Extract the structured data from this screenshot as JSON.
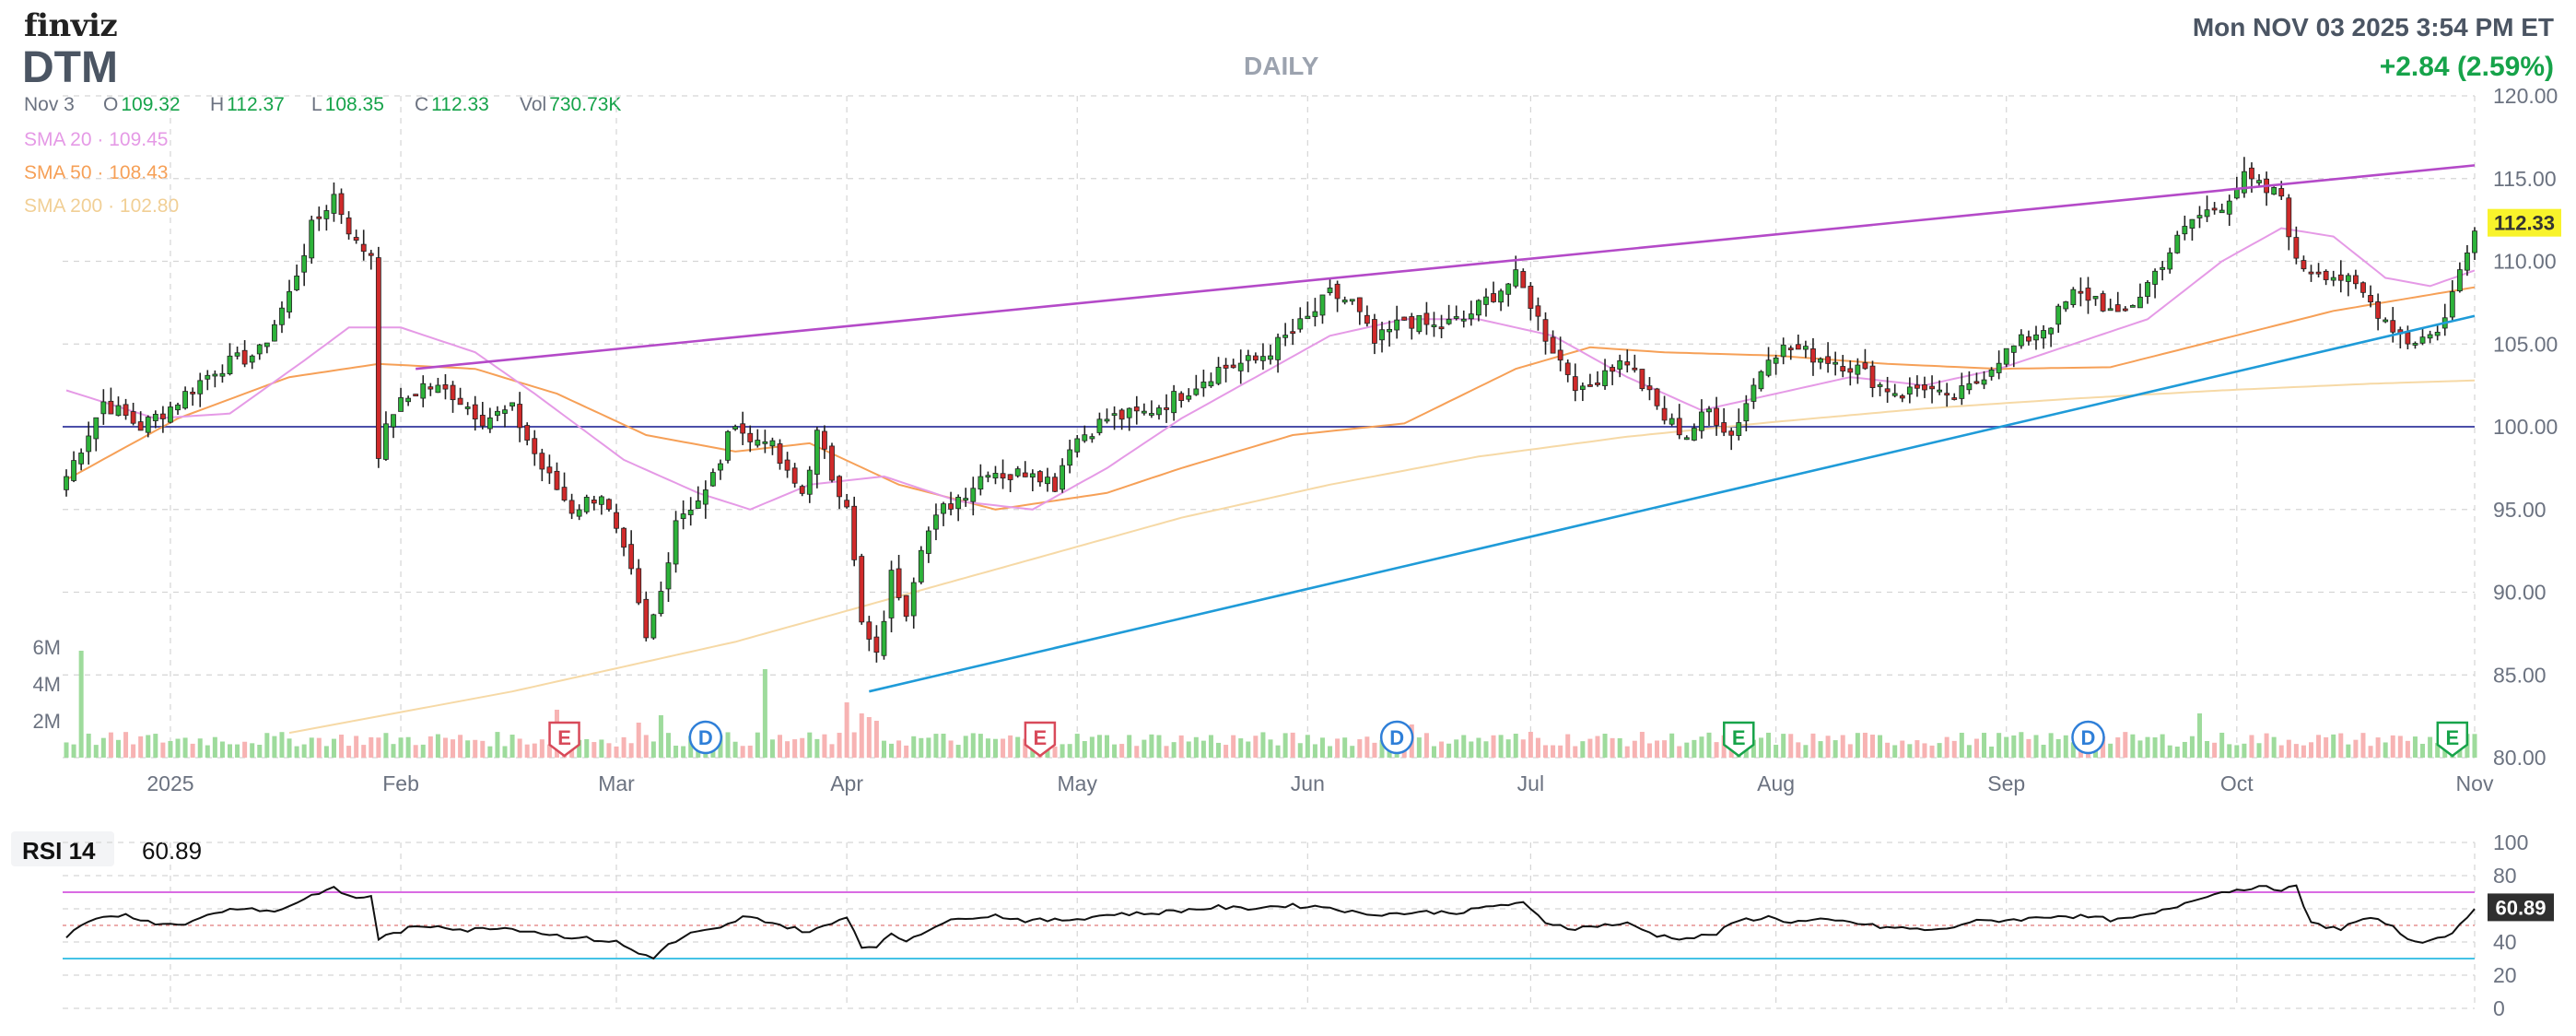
{
  "header": {
    "logo": "finviz",
    "ticker": "DTM",
    "timeframe": "DAILY",
    "datetime": "Mon NOV 03 2025 3:54 PM ET",
    "change": "+2.84 (2.59%)"
  },
  "ohlc": {
    "date": "Nov 3",
    "open_label": "O",
    "open": "109.32",
    "high_label": "H",
    "high": "112.37",
    "low_label": "L",
    "low": "108.35",
    "close_label": "C",
    "close": "112.33",
    "vol_label": "Vol",
    "vol": "730.73K"
  },
  "colors": {
    "up": "#2db33a",
    "down": "#d02a2a",
    "sma20": "#e59ae6",
    "sma50": "#f6a057",
    "sma200": "#f6d9a6",
    "trend_upper": "#b44ac8",
    "trend_lower": "#1f9bd8",
    "hline": "#4b4fa8",
    "price_badge": "#f8f32b",
    "rsi_line": "#111111",
    "rsi_upper": "#d96be3",
    "rsi_lower": "#45c3e6",
    "rsi_mid": "#e07a7a"
  },
  "chart_data": [
    {
      "type": "candlestick",
      "ticker": "DTM",
      "ylim": [
        80,
        120
      ],
      "yticks": [
        "120.00",
        "115.00",
        "110.00",
        "105.00",
        "100.00",
        "95.00",
        "90.00",
        "85.00",
        "80.00"
      ],
      "xticks": [
        "2025",
        "Feb",
        "Mar",
        "Apr",
        "May",
        "Jun",
        "Jul",
        "Aug",
        "Sep",
        "Oct",
        "Nov"
      ],
      "xtick_index": [
        14,
        45,
        74,
        105,
        136,
        167,
        197,
        230,
        261,
        292,
        324
      ],
      "volume_ticks": [
        "6M",
        "4M",
        "2M"
      ],
      "last_price": "112.33",
      "horizontal_line": 100,
      "trendlines": [
        {
          "name": "upper",
          "from": [
            47,
            103.5
          ],
          "to": [
            324,
            115.8
          ]
        },
        {
          "name": "lower",
          "from": [
            108,
            84.0
          ],
          "to": [
            324,
            106.7
          ]
        }
      ],
      "events": [
        {
          "label": "E",
          "index": 67,
          "color": "#d84a5a"
        },
        {
          "label": "D",
          "index": 86,
          "color": "#2f7fd8"
        },
        {
          "label": "E",
          "index": 131,
          "color": "#d84a5a"
        },
        {
          "label": "D",
          "index": 179,
          "color": "#2f7fd8"
        },
        {
          "label": "E",
          "index": 225,
          "color": "#17a34a"
        },
        {
          "label": "D",
          "index": 272,
          "color": "#2f7fd8"
        },
        {
          "label": "E",
          "index": 321,
          "color": "#17a34a"
        }
      ],
      "sma": [
        {
          "name": "SMA 20",
          "value": "109.45"
        },
        {
          "name": "SMA 50",
          "value": "108.43"
        },
        {
          "name": "SMA 200",
          "value": "102.80"
        }
      ],
      "sma_knots": {
        "sma20": [
          [
            0,
            102.2
          ],
          [
            12,
            100.5
          ],
          [
            22,
            100.8
          ],
          [
            32,
            104.0
          ],
          [
            38,
            106.0
          ],
          [
            45,
            106.0
          ],
          [
            55,
            104.5
          ],
          [
            63,
            102.0
          ],
          [
            75,
            98.0
          ],
          [
            85,
            96.0
          ],
          [
            92,
            95.0
          ],
          [
            100,
            96.5
          ],
          [
            110,
            97.0
          ],
          [
            120,
            95.5
          ],
          [
            130,
            95.0
          ],
          [
            140,
            97.5
          ],
          [
            150,
            100.5
          ],
          [
            160,
            103.0
          ],
          [
            170,
            105.5
          ],
          [
            180,
            106.5
          ],
          [
            190,
            106.5
          ],
          [
            200,
            105.5
          ],
          [
            210,
            103.0
          ],
          [
            220,
            101.0
          ],
          [
            230,
            102.0
          ],
          [
            240,
            103.0
          ],
          [
            250,
            102.5
          ],
          [
            260,
            103.5
          ],
          [
            270,
            105.0
          ],
          [
            280,
            106.5
          ],
          [
            290,
            110.0
          ],
          [
            298,
            112.0
          ],
          [
            305,
            111.5
          ],
          [
            312,
            109.0
          ],
          [
            318,
            108.5
          ],
          [
            324,
            109.45
          ]
        ],
        "sma50": [
          [
            0,
            96.8
          ],
          [
            15,
            100.5
          ],
          [
            30,
            103.0
          ],
          [
            42,
            103.8
          ],
          [
            55,
            103.5
          ],
          [
            66,
            102.0
          ],
          [
            78,
            99.5
          ],
          [
            90,
            98.5
          ],
          [
            100,
            99.0
          ],
          [
            112,
            96.5
          ],
          [
            125,
            95.0
          ],
          [
            140,
            96.0
          ],
          [
            150,
            97.5
          ],
          [
            165,
            99.5
          ],
          [
            180,
            100.2
          ],
          [
            195,
            103.5
          ],
          [
            205,
            104.8
          ],
          [
            215,
            104.5
          ],
          [
            230,
            104.3
          ],
          [
            245,
            103.8
          ],
          [
            260,
            103.5
          ],
          [
            275,
            103.6
          ],
          [
            290,
            105.3
          ],
          [
            305,
            107.0
          ],
          [
            324,
            108.43
          ]
        ],
        "sma200": [
          [
            30,
            81.5
          ],
          [
            60,
            84.0
          ],
          [
            90,
            87.0
          ],
          [
            110,
            89.5
          ],
          [
            130,
            92.0
          ],
          [
            150,
            94.5
          ],
          [
            170,
            96.5
          ],
          [
            190,
            98.2
          ],
          [
            210,
            99.4
          ],
          [
            230,
            100.3
          ],
          [
            250,
            101.1
          ],
          [
            270,
            101.7
          ],
          [
            290,
            102.2
          ],
          [
            310,
            102.6
          ],
          [
            324,
            102.8
          ]
        ]
      },
      "price_knots": [
        [
          0,
          97.0
        ],
        [
          5,
          101.5
        ],
        [
          10,
          100.0
        ],
        [
          14,
          101.2
        ],
        [
          20,
          103.5
        ],
        [
          26,
          104.5
        ],
        [
          30,
          108.0
        ],
        [
          33,
          112.0
        ],
        [
          36,
          114.0
        ],
        [
          39,
          111.0
        ],
        [
          41,
          110.5
        ],
        [
          42,
          98.5
        ],
        [
          44,
          101.0
        ],
        [
          48,
          102.5
        ],
        [
          52,
          102.0
        ],
        [
          56,
          100.5
        ],
        [
          60,
          101.0
        ],
        [
          64,
          97.5
        ],
        [
          68,
          95.0
        ],
        [
          72,
          96.0
        ],
        [
          76,
          91.0
        ],
        [
          78,
          87.0
        ],
        [
          80,
          90.0
        ],
        [
          82,
          94.5
        ],
        [
          86,
          96.0
        ],
        [
          88,
          98.0
        ],
        [
          90,
          100.5
        ],
        [
          92,
          99.0
        ],
        [
          94,
          99.5
        ],
        [
          97,
          97.0
        ],
        [
          99,
          96.0
        ],
        [
          101,
          99.5
        ],
        [
          103,
          97.0
        ],
        [
          105,
          95.5
        ],
        [
          107,
          88.0
        ],
        [
          109,
          86.0
        ],
        [
          111,
          91.0
        ],
        [
          113,
          89.0
        ],
        [
          115,
          93.0
        ],
        [
          118,
          95.0
        ],
        [
          122,
          96.5
        ],
        [
          124,
          97.5
        ],
        [
          127,
          97.0
        ],
        [
          130,
          97.5
        ],
        [
          133,
          96.5
        ],
        [
          135,
          99.0
        ],
        [
          140,
          100.5
        ],
        [
          145,
          100.8
        ],
        [
          150,
          102.0
        ],
        [
          155,
          103.5
        ],
        [
          160,
          104.0
        ],
        [
          163,
          105.0
        ],
        [
          167,
          106.5
        ],
        [
          170,
          108.0
        ],
        [
          173,
          107.5
        ],
        [
          176,
          105.0
        ],
        [
          180,
          106.5
        ],
        [
          184,
          106.0
        ],
        [
          188,
          106.5
        ],
        [
          192,
          108.0
        ],
        [
          195,
          109.0
        ],
        [
          197,
          107.5
        ],
        [
          199,
          105.5
        ],
        [
          201,
          104.0
        ],
        [
          204,
          102.0
        ],
        [
          207,
          103.5
        ],
        [
          210,
          104.0
        ],
        [
          212,
          102.5
        ],
        [
          215,
          100.5
        ],
        [
          218,
          99.5
        ],
        [
          221,
          101.0
        ],
        [
          224,
          99.5
        ],
        [
          226,
          101.5
        ],
        [
          229,
          104.5
        ],
        [
          232,
          104.8
        ],
        [
          235,
          104.3
        ],
        [
          238,
          104.0
        ],
        [
          241,
          103.5
        ],
        [
          244,
          102.5
        ],
        [
          247,
          102.0
        ],
        [
          250,
          102.5
        ],
        [
          253,
          101.5
        ],
        [
          256,
          102.3
        ],
        [
          260,
          104.2
        ],
        [
          264,
          105.4
        ],
        [
          267,
          106.3
        ],
        [
          270,
          108.0
        ],
        [
          273,
          107.8
        ],
        [
          276,
          106.5
        ],
        [
          279,
          108.0
        ],
        [
          282,
          110.0
        ],
        [
          286,
          112.5
        ],
        [
          290,
          113.5
        ],
        [
          293,
          115.0
        ],
        [
          296,
          114.2
        ],
        [
          298,
          114.0
        ],
        [
          300,
          109.8
        ],
        [
          303,
          109.5
        ],
        [
          306,
          109.0
        ],
        [
          309,
          108.0
        ],
        [
          312,
          106.5
        ],
        [
          315,
          105.2
        ],
        [
          318,
          105.5
        ],
        [
          320,
          106.5
        ],
        [
          322,
          109.5
        ],
        [
          324,
          112.33
        ]
      ],
      "volume_spikes": [
        [
          2,
          5.8
        ],
        [
          66,
          2.6
        ],
        [
          77,
          1.9
        ],
        [
          80,
          2.3
        ],
        [
          94,
          4.8
        ],
        [
          105,
          3.0
        ],
        [
          107,
          2.4
        ],
        [
          108,
          2.2
        ],
        [
          109,
          2.0
        ],
        [
          181,
          1.8
        ],
        [
          197,
          1.4
        ],
        [
          287,
          2.4
        ],
        [
          320,
          1.9
        ]
      ],
      "bars": 325
    },
    {
      "type": "line",
      "name": "RSI 14",
      "value": "60.89",
      "ylim": [
        0,
        100
      ],
      "yticks": [
        "100",
        "80",
        "60",
        "40",
        "20",
        "0"
      ],
      "bands": {
        "upper": 70,
        "mid": 50,
        "lower": 30
      },
      "knots": [
        [
          0,
          43
        ],
        [
          3,
          52
        ],
        [
          6,
          55
        ],
        [
          8,
          57
        ],
        [
          11,
          52
        ],
        [
          14,
          51
        ],
        [
          17,
          52
        ],
        [
          20,
          58
        ],
        [
          24,
          61
        ],
        [
          28,
          58
        ],
        [
          31,
          64
        ],
        [
          34,
          70
        ],
        [
          36,
          72
        ],
        [
          39,
          66
        ],
        [
          41,
          68
        ],
        [
          42,
          42
        ],
        [
          46,
          48
        ],
        [
          50,
          50
        ],
        [
          54,
          47
        ],
        [
          58,
          49
        ],
        [
          62,
          47
        ],
        [
          66,
          44
        ],
        [
          70,
          42
        ],
        [
          74,
          40
        ],
        [
          77,
          33
        ],
        [
          79,
          31
        ],
        [
          81,
          38
        ],
        [
          84,
          45
        ],
        [
          88,
          48
        ],
        [
          91,
          55
        ],
        [
          94,
          53
        ],
        [
          97,
          49
        ],
        [
          100,
          46
        ],
        [
          103,
          51
        ],
        [
          105,
          56
        ],
        [
          107,
          37
        ],
        [
          109,
          38
        ],
        [
          111,
          44
        ],
        [
          113,
          41
        ],
        [
          117,
          50
        ],
        [
          121,
          55
        ],
        [
          125,
          56
        ],
        [
          129,
          53
        ],
        [
          133,
          53
        ],
        [
          136,
          54
        ],
        [
          141,
          57
        ],
        [
          145,
          57
        ],
        [
          150,
          59
        ],
        [
          155,
          61
        ],
        [
          158,
          60
        ],
        [
          164,
          62
        ],
        [
          170,
          61
        ],
        [
          174,
          57
        ],
        [
          178,
          57
        ],
        [
          183,
          58
        ],
        [
          188,
          58
        ],
        [
          192,
          62
        ],
        [
          196,
          63
        ],
        [
          199,
          52
        ],
        [
          203,
          48
        ],
        [
          206,
          50
        ],
        [
          210,
          51
        ],
        [
          214,
          44
        ],
        [
          218,
          42
        ],
        [
          222,
          45
        ],
        [
          225,
          53
        ],
        [
          229,
          55
        ],
        [
          232,
          52
        ],
        [
          236,
          53
        ],
        [
          240,
          52
        ],
        [
          244,
          49
        ],
        [
          248,
          48
        ],
        [
          252,
          47
        ],
        [
          256,
          52
        ],
        [
          260,
          53
        ],
        [
          264,
          54
        ],
        [
          268,
          56
        ],
        [
          272,
          55
        ],
        [
          276,
          53
        ],
        [
          280,
          56
        ],
        [
          283,
          60
        ],
        [
          287,
          67
        ],
        [
          290,
          70
        ],
        [
          294,
          73
        ],
        [
          298,
          72
        ],
        [
          300,
          73
        ],
        [
          302,
          51
        ],
        [
          306,
          48
        ],
        [
          309,
          54
        ],
        [
          312,
          52
        ],
        [
          315,
          42
        ],
        [
          318,
          40
        ],
        [
          320,
          43
        ],
        [
          322,
          50
        ],
        [
          324,
          60.89
        ]
      ]
    }
  ]
}
